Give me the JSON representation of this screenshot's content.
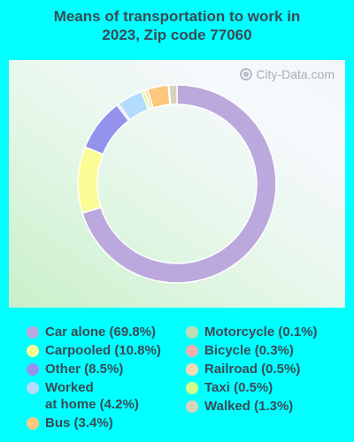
{
  "title_line1": "Means of transportation to work in",
  "title_line2": "2023, Zip code 77060",
  "watermark": "City-Data.com",
  "chart_data": {
    "type": "pie",
    "title": "Means of transportation to work in 2023, Zip code 77060",
    "donut": true,
    "legend_position": "bottom",
    "slices": [
      {
        "label": "Car alone (69.8%)",
        "value": 69.8,
        "color": "#bba8dc"
      },
      {
        "label": "Carpooled (10.8%)",
        "value": 10.8,
        "color": "#fcfc96"
      },
      {
        "label": "Other (8.5%)",
        "value": 8.5,
        "color": "#9393ee"
      },
      {
        "label": "Bicycle (0.3%)",
        "value": 0.3,
        "color": "#f0b0b0"
      },
      {
        "label": "Worked at home (4.2%)",
        "value": 4.2,
        "color": "#b4dcfc"
      },
      {
        "label": "Taxi (0.5%)",
        "value": 0.5,
        "color": "#d4fc8c"
      },
      {
        "label": "Railroad (0.5%)",
        "value": 0.5,
        "color": "#fcd8b4"
      },
      {
        "label": "Bus (3.4%)",
        "value": 3.4,
        "color": "#fcc87c"
      },
      {
        "label": "Motorcycle (0.1%)",
        "value": 0.1,
        "color": "#c0dcb0"
      },
      {
        "label": "Walked (1.3%)",
        "value": 1.3,
        "color": "#d8d4bc"
      }
    ]
  },
  "legend": {
    "left": [
      {
        "line1": "Car alone (69.8%)",
        "line2": "",
        "color": "#bba8dc"
      },
      {
        "line1": "Carpooled (10.8%)",
        "line2": "",
        "color": "#fcfc96"
      },
      {
        "line1": "Other (8.5%)",
        "line2": "",
        "color": "#9393ee"
      },
      {
        "line1": "Worked",
        "line2": "at home (4.2%)",
        "color": "#b4dcfc"
      },
      {
        "line1": "Bus (3.4%)",
        "line2": "",
        "color": "#fcc87c"
      }
    ],
    "right": [
      {
        "line1": "Motorcycle (0.1%)",
        "line2": "",
        "color": "#c0dcb0"
      },
      {
        "line1": "Bicycle (0.3%)",
        "line2": "",
        "color": "#f0b0b0"
      },
      {
        "line1": "Railroad (0.5%)",
        "line2": "",
        "color": "#fcd8b4"
      },
      {
        "line1": "Taxi (0.5%)",
        "line2": "",
        "color": "#d4fc8c"
      },
      {
        "line1": "Walked (1.3%)",
        "line2": "",
        "color": "#d8d4bc"
      }
    ]
  }
}
